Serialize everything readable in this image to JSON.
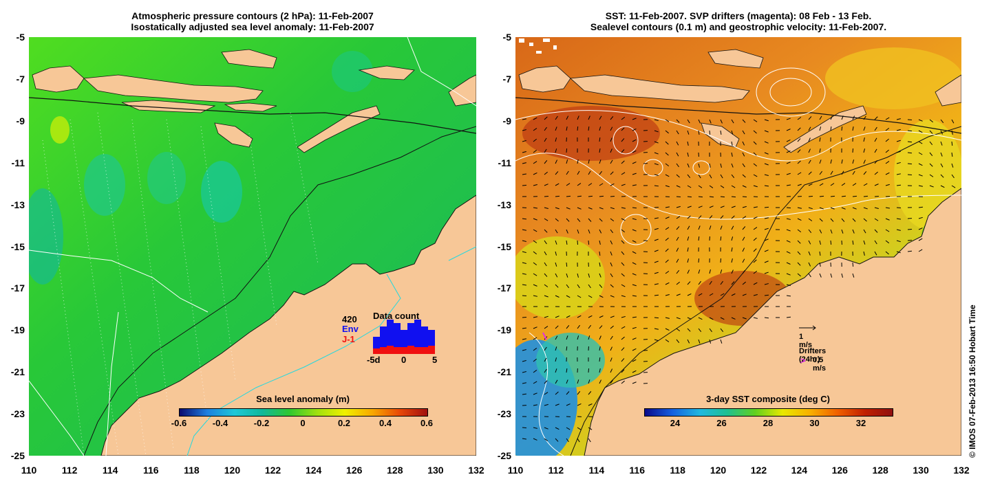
{
  "left_panel": {
    "title_line1": "Atmospheric pressure contours (2 hPa): 11-Feb-2007",
    "title_line2": "Isostatically adjusted sea level anomaly: 11-Feb-2007",
    "colorbar": {
      "label": "Sea level anomaly (m)",
      "ticks": [
        "-0.6",
        "-0.4",
        "-0.2",
        "0",
        "0.2",
        "0.4",
        "0.6"
      ],
      "colors": [
        "#0a0a6e",
        "#1d7fe0",
        "#20c8d8",
        "#10b89a",
        "#30c830",
        "#a0e010",
        "#f0f000",
        "#f8a800",
        "#e84808",
        "#a01010"
      ]
    },
    "inset": {
      "title": "Data count",
      "count": "420",
      "env_label": "Env",
      "j1_label": "J-1",
      "xticks": [
        "-5d",
        "0",
        "5"
      ],
      "env_color": "#1010f0",
      "j1_color": "#f01010",
      "env_values": [
        5,
        8,
        10,
        9,
        7,
        9,
        10,
        8,
        7
      ],
      "j1_values": [
        4,
        5,
        6,
        5,
        5,
        6,
        5,
        5,
        6
      ]
    },
    "colors": {
      "ocean": "#22c83a",
      "land": "#f7c797",
      "pressure": "#ffffff",
      "coast": "#111111",
      "depth": "#20d8e0"
    }
  },
  "right_panel": {
    "title_line1": "SST: 11-Feb-2007. SVP drifters (magenta): 08 Feb - 13 Feb.",
    "title_line2": "Sealevel contours (0.1 m) and geostrophic velocity: 11-Feb-2007.",
    "colorbar": {
      "label": "3-day SST composite (deg C)",
      "ticks": [
        "24",
        "26",
        "28",
        "30",
        "32"
      ],
      "colors": [
        "#0a0a8a",
        "#1560e0",
        "#20b8e0",
        "#20c090",
        "#60d020",
        "#e8e800",
        "#f8b000",
        "#f06000",
        "#c02000",
        "#901010"
      ]
    },
    "velocity_legend": "1 m/s",
    "drifters_label": "Drifters (24hr)",
    "drifters_speed": "0.5 m/s",
    "drifter_symbol": ">",
    "colors": {
      "warm": "#e07820",
      "hot": "#c04010",
      "mid": "#f0b818",
      "cool": "#40b8e0",
      "land": "#f7c797",
      "contour": "#ffffff",
      "arrow": "#000000",
      "drifter": "#e030e0"
    }
  },
  "axes": {
    "lat_labels": [
      "-5",
      "-7",
      "-9",
      "-11",
      "-13",
      "-15",
      "-17",
      "-19",
      "-21",
      "-23",
      "-25"
    ],
    "lon_labels": [
      "110",
      "112",
      "114",
      "116",
      "118",
      "120",
      "122",
      "124",
      "126",
      "128",
      "130",
      "132"
    ]
  },
  "credit": "© IMOS 07-Feb-2013 16:50 Hobart Time"
}
